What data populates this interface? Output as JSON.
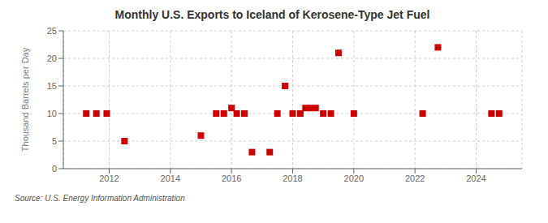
{
  "chart_data": {
    "type": "scatter",
    "title": "Monthly U.S. Exports to Iceland of Kerosene-Type Jet Fuel",
    "ylabel": "Thousand Barrels per Day",
    "annotations": [
      "Source: U.S. Energy Information Administration"
    ],
    "x": [
      2011.25,
      2011.58,
      2011.92,
      2012.5,
      2015.0,
      2015.5,
      2015.75,
      2016.0,
      2016.17,
      2016.42,
      2016.67,
      2017.25,
      2017.5,
      2017.75,
      2018.0,
      2018.25,
      2018.42,
      2018.58,
      2018.75,
      2019.0,
      2019.25,
      2019.5,
      2020.0,
      2022.25,
      2022.75,
      2024.5,
      2024.75
    ],
    "values": [
      10,
      10,
      10,
      5,
      6,
      10,
      10,
      11,
      10,
      10,
      3,
      3,
      10,
      15,
      10,
      10,
      11,
      11,
      11,
      10,
      10,
      21,
      10,
      10,
      22,
      10,
      10
    ],
    "color": "#cc0000",
    "marker": "square",
    "xlim": [
      2010.5,
      2025.5
    ],
    "xticks": [
      2012,
      2014,
      2016,
      2018,
      2020,
      2022,
      2024
    ],
    "ylim": [
      0,
      25
    ],
    "yticks": [
      0,
      5,
      10,
      15,
      20,
      25
    ],
    "grid": true
  }
}
